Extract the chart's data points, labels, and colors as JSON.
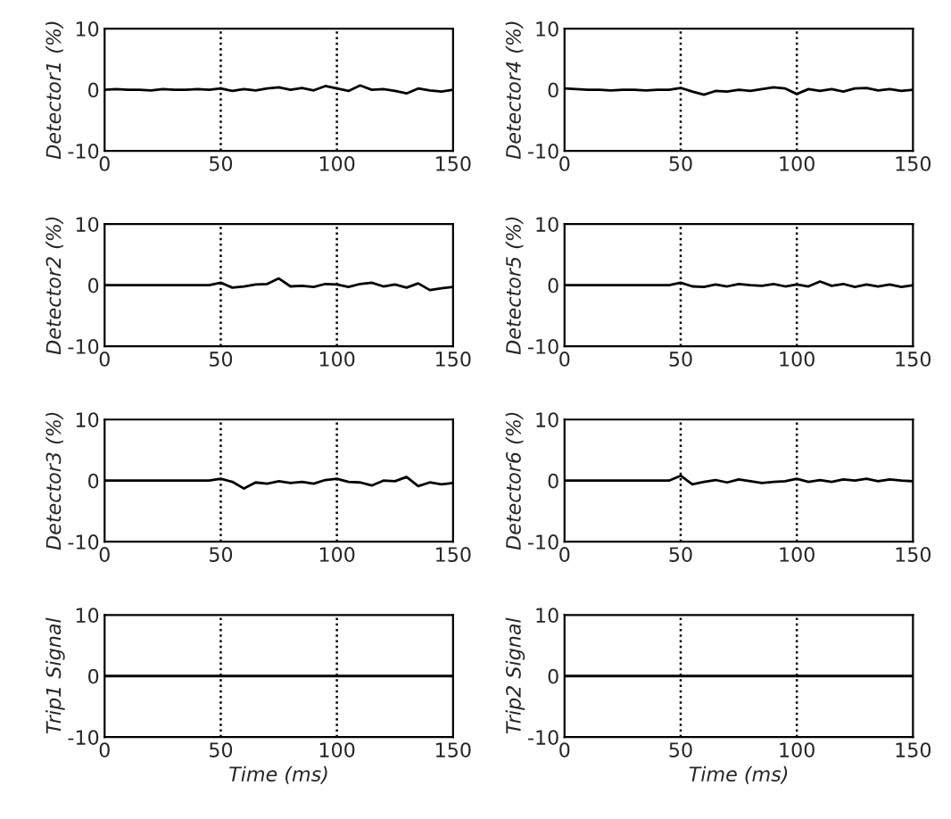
{
  "chart_data": [
    {
      "type": "line",
      "ylabel": "Detector1 (%)",
      "x": [
        0,
        5,
        10,
        15,
        20,
        25,
        30,
        35,
        40,
        45,
        50,
        55,
        60,
        65,
        70,
        75,
        80,
        85,
        90,
        95,
        100,
        105,
        110,
        115,
        120,
        125,
        130,
        135,
        140,
        145,
        150
      ],
      "series": [
        {
          "color": "#000000",
          "values": [
            0,
            0.1,
            0,
            0,
            -0.1,
            0.1,
            0,
            0,
            0.1,
            0,
            0.2,
            -0.2,
            0.1,
            -0.1,
            0.2,
            0.4,
            0,
            0.3,
            -0.1,
            0.6,
            0.2,
            -0.2,
            0.7,
            0,
            0.1,
            -0.2,
            -0.6,
            0.2,
            -0.1,
            -0.3,
            0
          ]
        }
      ],
      "xlim": [
        0,
        150
      ],
      "ylim": [
        -10,
        10
      ],
      "xticks": [
        0,
        50,
        100,
        150
      ],
      "yticks": [
        -10,
        0,
        10
      ],
      "ref_lines": [
        {
          "axis": "x",
          "value": 50,
          "color": "#000000",
          "line_style": "dotted"
        },
        {
          "axis": "x",
          "value": 100,
          "color": "#000000",
          "line_style": "dotted"
        }
      ],
      "line_style": "solid"
    },
    {
      "type": "line",
      "ylabel": "Detector4 (%)",
      "x": [
        0,
        5,
        10,
        15,
        20,
        25,
        30,
        35,
        40,
        45,
        50,
        55,
        60,
        65,
        70,
        75,
        80,
        85,
        90,
        95,
        100,
        105,
        110,
        115,
        120,
        125,
        130,
        135,
        140,
        145,
        150
      ],
      "series": [
        {
          "color": "#000000",
          "values": [
            0.2,
            0.1,
            0,
            0,
            -0.1,
            0,
            0,
            -0.1,
            0,
            0,
            0.3,
            -0.3,
            -0.8,
            -0.2,
            -0.3,
            0,
            -0.2,
            0.1,
            0.4,
            0.2,
            -0.7,
            0.1,
            -0.2,
            0.1,
            -0.3,
            0.2,
            0.3,
            -0.1,
            0.1,
            -0.2,
            0
          ]
        }
      ],
      "xlim": [
        0,
        150
      ],
      "ylim": [
        -10,
        10
      ],
      "xticks": [
        0,
        50,
        100,
        150
      ],
      "yticks": [
        -10,
        0,
        10
      ],
      "ref_lines": [
        {
          "axis": "x",
          "value": 50,
          "color": "#000000",
          "line_style": "dotted"
        },
        {
          "axis": "x",
          "value": 100,
          "color": "#000000",
          "line_style": "dotted"
        }
      ],
      "line_style": "solid"
    },
    {
      "type": "line",
      "ylabel": "Detector2 (%)",
      "x": [
        0,
        5,
        10,
        15,
        20,
        25,
        30,
        35,
        40,
        45,
        50,
        55,
        60,
        65,
        70,
        75,
        80,
        85,
        90,
        95,
        100,
        105,
        110,
        115,
        120,
        125,
        130,
        135,
        140,
        145,
        150
      ],
      "series": [
        {
          "color": "#000000",
          "values": [
            0,
            0,
            0,
            0,
            0,
            0,
            0,
            0,
            0,
            0,
            0.4,
            -0.4,
            -0.2,
            0.1,
            0.2,
            1.1,
            -0.2,
            -0.1,
            -0.3,
            0.2,
            0.1,
            -0.3,
            0.2,
            0.4,
            -0.2,
            0.1,
            -0.4,
            0.3,
            -0.8,
            -0.5,
            -0.3
          ]
        }
      ],
      "xlim": [
        0,
        150
      ],
      "ylim": [
        -10,
        10
      ],
      "xticks": [
        0,
        50,
        100,
        150
      ],
      "yticks": [
        -10,
        0,
        10
      ],
      "ref_lines": [
        {
          "axis": "x",
          "value": 50,
          "color": "#000000",
          "line_style": "dotted"
        },
        {
          "axis": "x",
          "value": 100,
          "color": "#000000",
          "line_style": "dotted"
        }
      ],
      "line_style": "solid"
    },
    {
      "type": "line",
      "ylabel": "Detector5 (%)",
      "x": [
        0,
        5,
        10,
        15,
        20,
        25,
        30,
        35,
        40,
        45,
        50,
        55,
        60,
        65,
        70,
        75,
        80,
        85,
        90,
        95,
        100,
        105,
        110,
        115,
        120,
        125,
        130,
        135,
        140,
        145,
        150
      ],
      "series": [
        {
          "color": "#000000",
          "values": [
            0,
            0,
            0,
            0,
            0,
            0,
            0,
            0,
            0,
            0,
            0.4,
            -0.2,
            -0.3,
            0.1,
            -0.2,
            0.2,
            0,
            -0.1,
            0.2,
            -0.2,
            0.1,
            -0.2,
            0.6,
            -0.1,
            0.2,
            -0.3,
            0.1,
            -0.2,
            0.1,
            -0.3,
            0
          ]
        }
      ],
      "xlim": [
        0,
        150
      ],
      "ylim": [
        -10,
        10
      ],
      "xticks": [
        0,
        50,
        100,
        150
      ],
      "yticks": [
        -10,
        0,
        10
      ],
      "ref_lines": [
        {
          "axis": "x",
          "value": 50,
          "color": "#000000",
          "line_style": "dotted"
        },
        {
          "axis": "x",
          "value": 100,
          "color": "#000000",
          "line_style": "dotted"
        }
      ],
      "line_style": "solid"
    },
    {
      "type": "line",
      "ylabel": "Detector3 (%)",
      "x": [
        0,
        5,
        10,
        15,
        20,
        25,
        30,
        35,
        40,
        45,
        50,
        55,
        60,
        65,
        70,
        75,
        80,
        85,
        90,
        95,
        100,
        105,
        110,
        115,
        120,
        125,
        130,
        135,
        140,
        145,
        150
      ],
      "series": [
        {
          "color": "#000000",
          "values": [
            0,
            0,
            0,
            0,
            0,
            0,
            0,
            0,
            0,
            0,
            0.3,
            -0.2,
            -1.3,
            -0.3,
            -0.5,
            -0.1,
            -0.4,
            -0.2,
            -0.5,
            0.1,
            0.3,
            -0.2,
            -0.3,
            -0.8,
            0,
            -0.1,
            0.6,
            -0.9,
            -0.3,
            -0.6,
            -0.4
          ]
        }
      ],
      "xlim": [
        0,
        150
      ],
      "ylim": [
        -10,
        10
      ],
      "xticks": [
        0,
        50,
        100,
        150
      ],
      "yticks": [
        -10,
        0,
        10
      ],
      "ref_lines": [
        {
          "axis": "x",
          "value": 50,
          "color": "#000000",
          "line_style": "dotted"
        },
        {
          "axis": "x",
          "value": 100,
          "color": "#000000",
          "line_style": "dotted"
        }
      ],
      "line_style": "solid"
    },
    {
      "type": "line",
      "ylabel": "Detector6 (%)",
      "x": [
        0,
        5,
        10,
        15,
        20,
        25,
        30,
        35,
        40,
        45,
        50,
        55,
        60,
        65,
        70,
        75,
        80,
        85,
        90,
        95,
        100,
        105,
        110,
        115,
        120,
        125,
        130,
        135,
        140,
        145,
        150
      ],
      "series": [
        {
          "color": "#000000",
          "values": [
            0,
            0,
            0,
            0,
            0,
            0,
            0,
            0,
            0,
            0,
            0.8,
            -0.6,
            -0.2,
            0.1,
            -0.3,
            0.2,
            -0.1,
            -0.4,
            -0.2,
            -0.1,
            0.3,
            -0.2,
            0.1,
            -0.2,
            0.2,
            0,
            0.3,
            -0.1,
            0.2,
            0,
            -0.1
          ]
        }
      ],
      "xlim": [
        0,
        150
      ],
      "ylim": [
        -10,
        10
      ],
      "xticks": [
        0,
        50,
        100,
        150
      ],
      "yticks": [
        -10,
        0,
        10
      ],
      "ref_lines": [
        {
          "axis": "x",
          "value": 50,
          "color": "#000000",
          "line_style": "dotted"
        },
        {
          "axis": "x",
          "value": 100,
          "color": "#000000",
          "line_style": "dotted"
        }
      ],
      "line_style": "solid"
    },
    {
      "type": "line",
      "ylabel": "Trip1 Signal",
      "xlabel": "Time (ms)",
      "x": [
        0,
        150
      ],
      "series": [
        {
          "color": "#000000",
          "values": [
            0,
            0
          ]
        }
      ],
      "xlim": [
        0,
        150
      ],
      "ylim": [
        -10,
        10
      ],
      "xticks": [
        0,
        50,
        100,
        150
      ],
      "yticks": [
        -10,
        0,
        10
      ],
      "ref_lines": [
        {
          "axis": "x",
          "value": 50,
          "color": "#000000",
          "line_style": "dotted"
        },
        {
          "axis": "x",
          "value": 100,
          "color": "#000000",
          "line_style": "dotted"
        }
      ],
      "line_style": "solid"
    },
    {
      "type": "line",
      "ylabel": "Trip2 Signal",
      "xlabel": "Time (ms)",
      "x": [
        0,
        150
      ],
      "series": [
        {
          "color": "#000000",
          "values": [
            0,
            0
          ]
        }
      ],
      "xlim": [
        0,
        150
      ],
      "ylim": [
        -10,
        10
      ],
      "xticks": [
        0,
        50,
        100,
        150
      ],
      "yticks": [
        -10,
        0,
        10
      ],
      "ref_lines": [
        {
          "axis": "x",
          "value": 50,
          "color": "#000000",
          "line_style": "dotted"
        },
        {
          "axis": "x",
          "value": 100,
          "color": "#000000",
          "line_style": "dotted"
        }
      ],
      "line_style": "solid"
    }
  ]
}
